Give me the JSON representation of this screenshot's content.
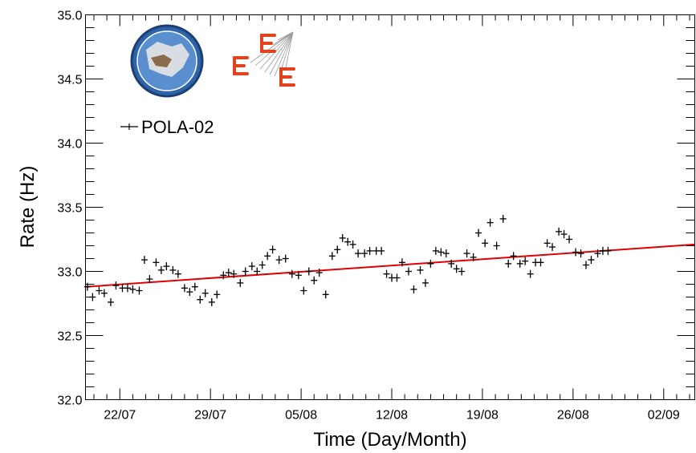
{
  "chart_data": {
    "type": "scatter",
    "xlabel": "Time (Day/Month)",
    "ylabel": "Rate (Hz)",
    "x_unit": "day",
    "x_ticks": [
      {
        "label": "22/07",
        "day": 3
      },
      {
        "label": "29/07",
        "day": 10
      },
      {
        "label": "05/08",
        "day": 17
      },
      {
        "label": "12/08",
        "day": 24
      },
      {
        "label": "19/08",
        "day": 31
      },
      {
        "label": "26/08",
        "day": 38
      },
      {
        "label": "02/09",
        "day": 45
      }
    ],
    "y_ticks": [
      "32.0",
      "32.5",
      "33.0",
      "33.5",
      "34.0",
      "34.5",
      "35.0"
    ],
    "ylim": [
      32.0,
      35.0
    ],
    "xlim": [
      0.35,
      47.4
    ],
    "legend": {
      "label": "POLA-02",
      "placement": "top-left"
    },
    "grid": false,
    "series": [
      {
        "name": "POLA-02",
        "marker": "cross",
        "color": "#000000",
        "points": [
          [
            0.5,
            32.88
          ],
          [
            0.9,
            32.8
          ],
          [
            1.4,
            32.85
          ],
          [
            1.8,
            32.83
          ],
          [
            2.3,
            32.76
          ],
          [
            2.7,
            32.89
          ],
          [
            3.2,
            32.87
          ],
          [
            3.6,
            32.87
          ],
          [
            4.0,
            32.86
          ],
          [
            4.5,
            32.85
          ],
          [
            4.9,
            33.09
          ],
          [
            5.3,
            32.94
          ],
          [
            5.8,
            33.07
          ],
          [
            6.2,
            33.01
          ],
          [
            6.6,
            33.04
          ],
          [
            7.1,
            33.01
          ],
          [
            7.5,
            32.98
          ],
          [
            8.0,
            32.87
          ],
          [
            8.4,
            32.84
          ],
          [
            8.8,
            32.88
          ],
          [
            9.2,
            32.78
          ],
          [
            9.6,
            32.83
          ],
          [
            10.1,
            32.76
          ],
          [
            10.5,
            32.82
          ],
          [
            11.0,
            32.97
          ],
          [
            11.4,
            32.99
          ],
          [
            11.8,
            32.98
          ],
          [
            12.3,
            32.91
          ],
          [
            12.7,
            33.0
          ],
          [
            13.2,
            33.04
          ],
          [
            13.6,
            33.0
          ],
          [
            14.0,
            33.05
          ],
          [
            14.4,
            33.12
          ],
          [
            14.8,
            33.17
          ],
          [
            15.3,
            33.09
          ],
          [
            15.8,
            33.1
          ],
          [
            16.3,
            32.98
          ],
          [
            16.8,
            32.97
          ],
          [
            17.2,
            32.85
          ],
          [
            17.6,
            33.0
          ],
          [
            18.0,
            32.93
          ],
          [
            18.4,
            32.99
          ],
          [
            18.9,
            32.82
          ],
          [
            19.4,
            33.12
          ],
          [
            19.8,
            33.17
          ],
          [
            20.2,
            33.26
          ],
          [
            20.6,
            33.23
          ],
          [
            21.0,
            33.21
          ],
          [
            21.4,
            33.14
          ],
          [
            21.9,
            33.14
          ],
          [
            22.3,
            33.16
          ],
          [
            22.8,
            33.16
          ],
          [
            23.2,
            33.16
          ],
          [
            23.6,
            32.98
          ],
          [
            24.0,
            32.95
          ],
          [
            24.4,
            32.95
          ],
          [
            24.8,
            33.07
          ],
          [
            25.3,
            33.0
          ],
          [
            25.7,
            32.86
          ],
          [
            26.2,
            33.01
          ],
          [
            26.6,
            32.91
          ],
          [
            27.0,
            33.06
          ],
          [
            27.4,
            33.16
          ],
          [
            27.8,
            33.15
          ],
          [
            28.2,
            33.14
          ],
          [
            28.6,
            33.06
          ],
          [
            29.0,
            33.02
          ],
          [
            29.4,
            33.0
          ],
          [
            29.8,
            33.14
          ],
          [
            30.3,
            33.11
          ],
          [
            30.7,
            33.3
          ],
          [
            31.2,
            33.22
          ],
          [
            31.6,
            33.38
          ],
          [
            32.1,
            33.2
          ],
          [
            32.6,
            33.41
          ],
          [
            33.0,
            33.06
          ],
          [
            33.4,
            33.12
          ],
          [
            33.9,
            33.06
          ],
          [
            34.3,
            33.08
          ],
          [
            34.7,
            32.98
          ],
          [
            35.1,
            33.07
          ],
          [
            35.5,
            33.07
          ],
          [
            36.0,
            33.22
          ],
          [
            36.4,
            33.19
          ],
          [
            36.9,
            33.31
          ],
          [
            37.3,
            33.29
          ],
          [
            37.7,
            33.25
          ],
          [
            38.2,
            33.15
          ],
          [
            38.6,
            33.14
          ],
          [
            39.0,
            33.05
          ],
          [
            39.4,
            33.09
          ],
          [
            39.9,
            33.14
          ],
          [
            40.3,
            33.16
          ],
          [
            40.7,
            33.16
          ]
        ]
      }
    ],
    "fit": {
      "type": "linear",
      "color": "#e00000",
      "x": [
        0.35,
        47.4
      ],
      "y": [
        32.88,
        33.21
      ]
    }
  }
}
